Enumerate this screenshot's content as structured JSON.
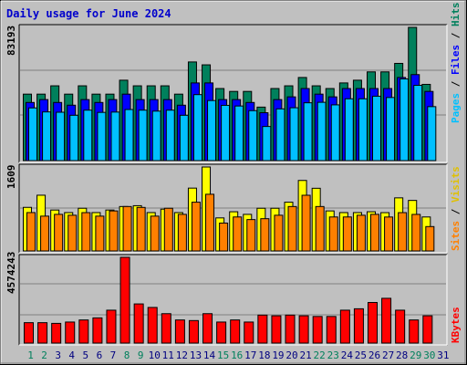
{
  "title": "Daily usage for June 2024",
  "colors": {
    "hits": "#00805c",
    "files": "#0000ff",
    "pages": "#00c0ff",
    "visits": "#ffff00",
    "sites": "#ff8000",
    "kbytes": "#ff0000",
    "weekend_day": "#00805c",
    "weekday": "#000080"
  },
  "chart_data": [
    {
      "type": "bar",
      "title": "Daily usage for June 2024",
      "categories": [
        "1",
        "2",
        "3",
        "4",
        "5",
        "6",
        "7",
        "8",
        "9",
        "10",
        "11",
        "12",
        "13",
        "14",
        "15",
        "16",
        "17",
        "18",
        "19",
        "20",
        "21",
        "22",
        "23",
        "24",
        "25",
        "26",
        "27",
        "28",
        "29",
        "30",
        "31"
      ],
      "ymax_label": "83193",
      "ymax": 83193,
      "axis_label": {
        "pages": "Pages",
        "sep1": " / ",
        "files": "Files",
        "sep2": " / ",
        "hits": "Hits"
      },
      "series": [
        {
          "name": "Hits",
          "values": [
            41500,
            41500,
            46700,
            41500,
            46700,
            41500,
            41500,
            50200,
            46700,
            46700,
            46700,
            41500,
            61600,
            59800,
            45000,
            43200,
            43200,
            33400,
            45000,
            46700,
            51900,
            46700,
            45000,
            48500,
            50200,
            55400,
            55400,
            60700,
            83200,
            47600,
            0
          ]
        },
        {
          "name": "Files",
          "values": [
            36300,
            38100,
            36300,
            34600,
            38100,
            36300,
            38100,
            41500,
            38100,
            38100,
            38100,
            34600,
            48500,
            48500,
            38100,
            38100,
            36300,
            29900,
            38100,
            39800,
            45000,
            41500,
            39800,
            45000,
            45000,
            45000,
            45000,
            51900,
            53700,
            43200,
            0
          ]
        },
        {
          "name": "Pages",
          "values": [
            32900,
            30400,
            30200,
            28300,
            31500,
            30100,
            30300,
            31900,
            31500,
            30900,
            31500,
            28300,
            41200,
            37500,
            34500,
            34100,
            31200,
            21300,
            32300,
            33000,
            36100,
            36400,
            34800,
            38600,
            38600,
            40200,
            39400,
            51000,
            47000,
            33700,
            0
          ]
        }
      ]
    },
    {
      "type": "bar",
      "categories": [
        "1",
        "2",
        "3",
        "4",
        "5",
        "6",
        "7",
        "8",
        "9",
        "10",
        "11",
        "12",
        "13",
        "14",
        "15",
        "16",
        "17",
        "18",
        "19",
        "20",
        "21",
        "22",
        "23",
        "24",
        "25",
        "26",
        "27",
        "28",
        "29",
        "30",
        "31"
      ],
      "ymax_label": "1609",
      "ymax": 1609,
      "axis_label": {
        "sites": "Sites",
        "sep1": " / ",
        "visits": "Visits"
      },
      "series": [
        {
          "name": "Visits",
          "values": [
            835,
            1068,
            784,
            735,
            818,
            735,
            784,
            851,
            867,
            735,
            801,
            735,
            1204,
            1609,
            633,
            751,
            701,
            818,
            818,
            934,
            1351,
            1201,
            767,
            735,
            735,
            751,
            734,
            1017,
            968,
            651,
            0
          ]
        },
        {
          "name": "Sites",
          "values": [
            735,
            667,
            701,
            684,
            734,
            667,
            767,
            851,
            834,
            667,
            818,
            701,
            934,
            1086,
            534,
            651,
            601,
            618,
            684,
            851,
            1067,
            851,
            651,
            651,
            684,
            701,
            650,
            734,
            700,
            467,
            0
          ]
        }
      ]
    },
    {
      "type": "bar",
      "categories": [
        "1",
        "2",
        "3",
        "4",
        "5",
        "6",
        "7",
        "8",
        "9",
        "10",
        "11",
        "12",
        "13",
        "14",
        "15",
        "16",
        "17",
        "18",
        "19",
        "20",
        "21",
        "22",
        "23",
        "24",
        "25",
        "26",
        "27",
        "28",
        "29",
        "30",
        "31"
      ],
      "ymax_label": "4574243",
      "ymax": 4574243,
      "axis_label": {
        "kbytes": "KBytes"
      },
      "series": [
        {
          "name": "KBytes",
          "values": [
            1088700,
            1088700,
            1051300,
            1122800,
            1234000,
            1346000,
            1755000,
            4574243,
            2088700,
            1901200,
            1569300,
            1234000,
            1201200,
            1569300,
            1122800,
            1234000,
            1122800,
            1493500,
            1456200,
            1493500,
            1456200,
            1419000,
            1419000,
            1755000,
            1830400,
            2166000,
            2389000,
            1755000,
            1234000,
            1456200,
            0
          ]
        }
      ]
    }
  ],
  "days": {
    "labels": [
      "1",
      "2",
      "3",
      "4",
      "5",
      "6",
      "7",
      "8",
      "9",
      "10",
      "11",
      "12",
      "13",
      "14",
      "15",
      "16",
      "17",
      "18",
      "19",
      "20",
      "21",
      "22",
      "23",
      "24",
      "25",
      "26",
      "27",
      "28",
      "29",
      "30",
      "31"
    ],
    "weekend": [
      1,
      2,
      8,
      9,
      15,
      16,
      22,
      23,
      29,
      30
    ]
  }
}
